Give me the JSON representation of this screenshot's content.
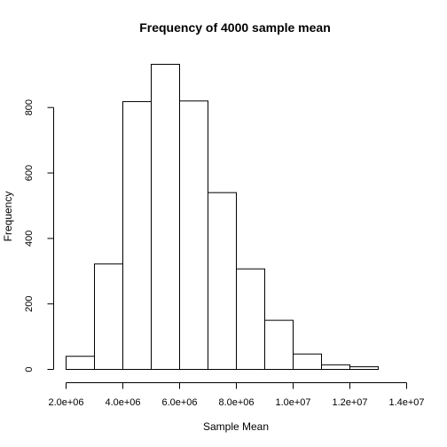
{
  "chart_data": {
    "type": "bar",
    "title": "Frequency of 4000 sample mean",
    "xlabel": "Sample Mean",
    "ylabel": "Frequency",
    "bin_edges": [
      2000000,
      3000000,
      4000000,
      5000000,
      6000000,
      7000000,
      8000000,
      9000000,
      10000000,
      11000000,
      12000000,
      13000000
    ],
    "values": [
      40,
      322,
      818,
      932,
      820,
      540,
      307,
      150,
      47,
      14,
      8
    ],
    "xlim": [
      2000000,
      14000000
    ],
    "ylim": [
      0,
      932
    ],
    "x_ticks": [
      2000000,
      4000000,
      6000000,
      8000000,
      10000000,
      12000000,
      14000000
    ],
    "x_tick_labels": [
      "2.0e+06",
      "4.0e+06",
      "6.0e+06",
      "8.0e+06",
      "1.0e+07",
      "1.2e+07",
      "1.4e+07"
    ],
    "y_ticks": [
      0,
      200,
      400,
      600,
      800
    ],
    "y_tick_labels": [
      "0",
      "200",
      "400",
      "600",
      "800"
    ],
    "grid": false,
    "legend": "none"
  }
}
